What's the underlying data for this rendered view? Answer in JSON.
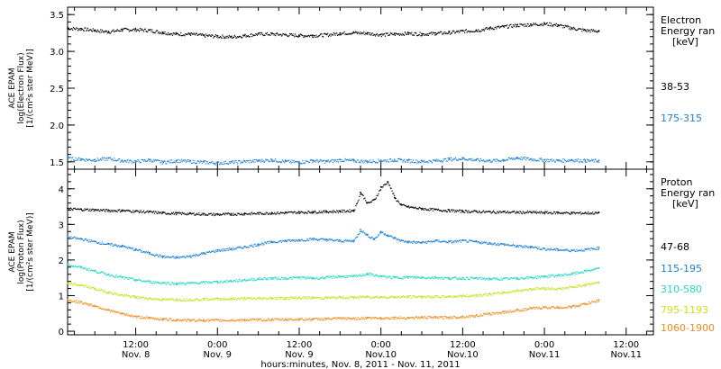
{
  "x_axis": {
    "title": "hours:minutes, Nov.  8, 2011 - Nov. 11, 2011",
    "ticks": [
      {
        "time": "12:00",
        "date": "Nov. 8",
        "t": 12
      },
      {
        "time": "0:00",
        "date": "Nov. 9",
        "t": 24
      },
      {
        "time": "12:00",
        "date": "Nov. 9",
        "t": 36
      },
      {
        "time": "0:00",
        "date": "Nov.10",
        "t": 48
      },
      {
        "time": "12:00",
        "date": "Nov.10",
        "t": 60
      },
      {
        "time": "0:00",
        "date": "Nov.11",
        "t": 72
      },
      {
        "time": "12:00",
        "date": "Nov.11",
        "t": 84
      }
    ]
  },
  "chart_data": [
    {
      "type": "scatter",
      "panel": "electron",
      "ylabel": [
        "ACE EPAM",
        "log(Electron Flux)",
        "[1/(cm²s ster MeV)]"
      ],
      "ylim": [
        1.4,
        3.6
      ],
      "yticks": [
        1.5,
        2.0,
        2.5,
        3.0,
        3.5
      ],
      "xlim": [
        2,
        88
      ],
      "legend_title": [
        "Electron",
        "Energy ran",
        "[keV]"
      ],
      "series": [
        {
          "name": "38-53",
          "color": "#000000",
          "x": [
            2,
            4,
            6,
            8,
            10,
            12,
            14,
            16,
            18,
            20,
            22,
            24,
            26,
            28,
            30,
            32,
            34,
            36,
            38,
            40,
            42,
            44,
            46,
            48,
            50,
            52,
            54,
            56,
            58,
            60,
            62,
            64,
            66,
            68,
            70,
            72,
            74,
            76,
            78,
            80
          ],
          "values": [
            3.32,
            3.31,
            3.29,
            3.27,
            3.3,
            3.3,
            3.29,
            3.26,
            3.24,
            3.24,
            3.22,
            3.21,
            3.2,
            3.22,
            3.24,
            3.24,
            3.23,
            3.22,
            3.22,
            3.23,
            3.25,
            3.26,
            3.25,
            3.23,
            3.24,
            3.25,
            3.24,
            3.25,
            3.26,
            3.28,
            3.29,
            3.32,
            3.34,
            3.36,
            3.37,
            3.38,
            3.36,
            3.32,
            3.29,
            3.28
          ]
        },
        {
          "name": "175-315",
          "color": "#1a7fd6",
          "x": [
            2,
            4,
            6,
            8,
            10,
            12,
            14,
            16,
            18,
            20,
            22,
            24,
            26,
            28,
            30,
            32,
            34,
            36,
            38,
            40,
            42,
            44,
            46,
            48,
            50,
            52,
            54,
            56,
            58,
            60,
            62,
            64,
            66,
            68,
            70,
            72,
            74,
            76,
            78,
            80
          ],
          "values": [
            1.55,
            1.54,
            1.53,
            1.55,
            1.52,
            1.51,
            1.53,
            1.5,
            1.52,
            1.51,
            1.5,
            1.49,
            1.5,
            1.51,
            1.52,
            1.53,
            1.51,
            1.5,
            1.52,
            1.51,
            1.53,
            1.52,
            1.51,
            1.52,
            1.53,
            1.52,
            1.51,
            1.52,
            1.54,
            1.55,
            1.53,
            1.52,
            1.53,
            1.56,
            1.54,
            1.53,
            1.52,
            1.53,
            1.52,
            1.52
          ]
        }
      ]
    },
    {
      "type": "scatter",
      "panel": "proton",
      "ylabel": [
        "ACE EPAM",
        "log(Proton Flux)",
        "[1/(cm²s ster MeV)]"
      ],
      "ylim": [
        -0.1,
        4.55
      ],
      "yticks": [
        0,
        1,
        2,
        3,
        4
      ],
      "xlim": [
        2,
        88
      ],
      "legend_title": [
        "Proton",
        "Energy ran",
        "[keV]"
      ],
      "series": [
        {
          "name": "47-68",
          "color": "#000000",
          "x": [
            2,
            4,
            6,
            8,
            10,
            12,
            14,
            16,
            18,
            20,
            22,
            24,
            26,
            28,
            30,
            32,
            34,
            36,
            38,
            40,
            42,
            44,
            45,
            46,
            47,
            48,
            49,
            50,
            51,
            52,
            54,
            56,
            58,
            60,
            62,
            64,
            66,
            68,
            70,
            72,
            74,
            76,
            78,
            80
          ],
          "values": [
            3.45,
            3.43,
            3.42,
            3.4,
            3.4,
            3.38,
            3.36,
            3.33,
            3.32,
            3.31,
            3.3,
            3.29,
            3.3,
            3.31,
            3.32,
            3.33,
            3.34,
            3.35,
            3.36,
            3.37,
            3.38,
            3.4,
            3.9,
            3.6,
            3.7,
            4.05,
            4.2,
            3.75,
            3.55,
            3.5,
            3.45,
            3.42,
            3.4,
            3.38,
            3.37,
            3.36,
            3.36,
            3.35,
            3.35,
            3.34,
            3.34,
            3.33,
            3.33,
            3.33
          ]
        },
        {
          "name": "115-195",
          "color": "#1a7fd6",
          "x": [
            2,
            4,
            6,
            8,
            10,
            12,
            14,
            16,
            18,
            20,
            22,
            24,
            26,
            28,
            30,
            32,
            34,
            36,
            38,
            40,
            42,
            44,
            45,
            46,
            47,
            48,
            49,
            50,
            51,
            52,
            54,
            56,
            58,
            60,
            62,
            64,
            66,
            68,
            70,
            72,
            74,
            76,
            78,
            80
          ],
          "values": [
            2.65,
            2.6,
            2.52,
            2.45,
            2.4,
            2.3,
            2.2,
            2.1,
            2.08,
            2.12,
            2.2,
            2.28,
            2.32,
            2.38,
            2.45,
            2.52,
            2.55,
            2.57,
            2.6,
            2.58,
            2.55,
            2.55,
            2.85,
            2.7,
            2.6,
            2.8,
            2.7,
            2.62,
            2.55,
            2.52,
            2.5,
            2.55,
            2.52,
            2.55,
            2.52,
            2.48,
            2.45,
            2.4,
            2.38,
            2.32,
            2.3,
            2.28,
            2.3,
            2.35
          ]
        },
        {
          "name": "310-580",
          "color": "#22d6c8",
          "x": [
            2,
            4,
            6,
            8,
            10,
            12,
            14,
            16,
            18,
            20,
            22,
            24,
            26,
            28,
            30,
            32,
            34,
            36,
            38,
            40,
            42,
            44,
            46,
            48,
            50,
            52,
            54,
            56,
            58,
            60,
            62,
            64,
            66,
            68,
            70,
            72,
            74,
            76,
            78,
            80
          ],
          "values": [
            1.88,
            1.8,
            1.7,
            1.6,
            1.52,
            1.45,
            1.4,
            1.37,
            1.35,
            1.36,
            1.38,
            1.4,
            1.42,
            1.45,
            1.48,
            1.5,
            1.5,
            1.52,
            1.5,
            1.52,
            1.55,
            1.55,
            1.62,
            1.55,
            1.52,
            1.53,
            1.52,
            1.52,
            1.5,
            1.5,
            1.5,
            1.48,
            1.48,
            1.5,
            1.52,
            1.55,
            1.58,
            1.62,
            1.7,
            1.78
          ]
        },
        {
          "name": "795-1193",
          "color": "#c8e01a",
          "x": [
            2,
            4,
            6,
            8,
            10,
            12,
            14,
            16,
            18,
            20,
            22,
            24,
            26,
            28,
            30,
            32,
            34,
            36,
            38,
            40,
            42,
            44,
            46,
            48,
            50,
            52,
            54,
            56,
            58,
            60,
            62,
            64,
            66,
            68,
            70,
            72,
            74,
            76,
            78,
            80
          ],
          "values": [
            1.35,
            1.3,
            1.2,
            1.1,
            1.02,
            0.97,
            0.93,
            0.9,
            0.9,
            0.9,
            0.91,
            0.92,
            0.92,
            0.93,
            0.93,
            0.94,
            0.94,
            0.95,
            0.95,
            0.95,
            0.96,
            0.96,
            0.98,
            0.97,
            0.97,
            0.98,
            0.98,
            0.98,
            0.99,
            1.0,
            1.02,
            1.05,
            1.1,
            1.15,
            1.2,
            1.22,
            1.2,
            1.25,
            1.32,
            1.38
          ]
        },
        {
          "name": "1060-1900",
          "color": "#f08a1c",
          "x": [
            2,
            4,
            6,
            8,
            10,
            12,
            14,
            16,
            18,
            20,
            22,
            24,
            26,
            28,
            30,
            32,
            34,
            36,
            38,
            40,
            42,
            44,
            46,
            48,
            50,
            52,
            54,
            56,
            58,
            60,
            62,
            64,
            66,
            68,
            70,
            72,
            74,
            76,
            78,
            80
          ],
          "values": [
            0.88,
            0.82,
            0.72,
            0.6,
            0.5,
            0.42,
            0.38,
            0.35,
            0.33,
            0.32,
            0.32,
            0.32,
            0.32,
            0.33,
            0.33,
            0.34,
            0.34,
            0.35,
            0.35,
            0.36,
            0.37,
            0.37,
            0.39,
            0.38,
            0.39,
            0.39,
            0.4,
            0.4,
            0.4,
            0.42,
            0.45,
            0.5,
            0.55,
            0.6,
            0.65,
            0.68,
            0.68,
            0.7,
            0.78,
            0.88
          ]
        }
      ]
    }
  ]
}
